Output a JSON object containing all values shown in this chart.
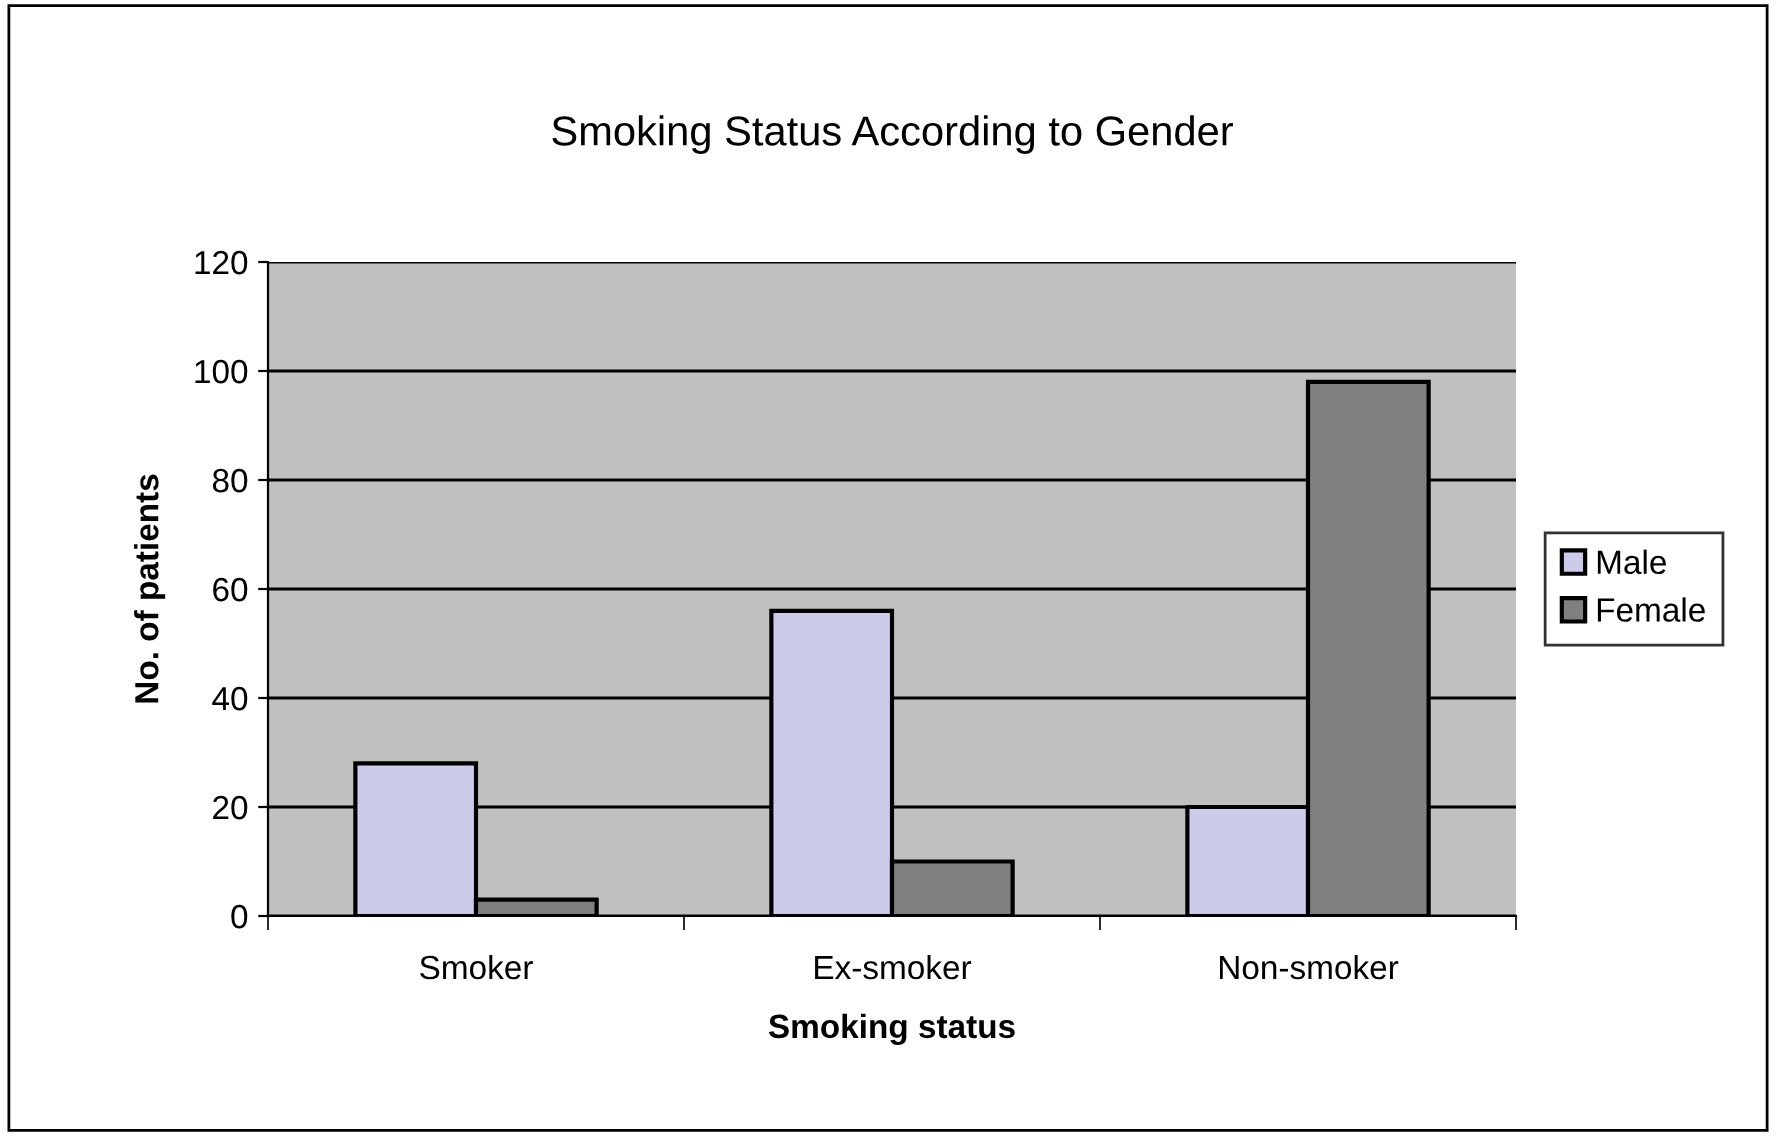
{
  "chart_data": {
    "type": "bar",
    "title": "Smoking Status According to Gender",
    "xlabel": "Smoking status",
    "ylabel": "No. of patients",
    "categories": [
      "Smoker",
      "Ex-smoker",
      "Non-smoker"
    ],
    "series": [
      {
        "name": "Male",
        "color": "#ccccea",
        "values": [
          28,
          56,
          20
        ]
      },
      {
        "name": "Female",
        "color": "#808080",
        "values": [
          3,
          10,
          98
        ]
      }
    ],
    "ylim": [
      0,
      120
    ],
    "yticks": [
      0,
      20,
      40,
      60,
      80,
      100,
      120
    ],
    "grid": "y",
    "legend": "right"
  }
}
